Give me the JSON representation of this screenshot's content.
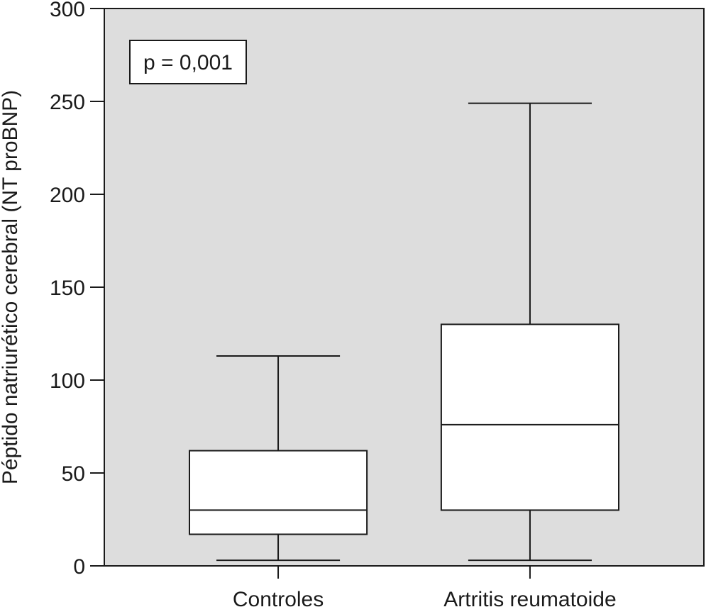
{
  "chart_data": {
    "type": "boxplot",
    "categories": [
      "Controles",
      "Artritis reumatoide"
    ],
    "boxes": [
      {
        "category": "Controles",
        "whisker_low": 3,
        "q1": 17,
        "median": 30,
        "q3": 62,
        "whisker_high": 113
      },
      {
        "category": "Artritis reumatoide",
        "whisker_low": 3,
        "q1": 30,
        "median": 76,
        "q3": 130,
        "whisker_high": 249
      }
    ],
    "xlabel": "",
    "ylabel": "Péptido natriurético cerebral (NT proBNP)",
    "ylim": [
      0,
      300
    ],
    "yticks": [
      "0",
      "50",
      "100",
      "150",
      "200",
      "250",
      "300"
    ],
    "annotation": "p = 0,001",
    "grid": false,
    "colors": {
      "plot_background": "#dddddd",
      "box_fill": "#ffffff",
      "stroke": "#1a1a1a"
    }
  }
}
